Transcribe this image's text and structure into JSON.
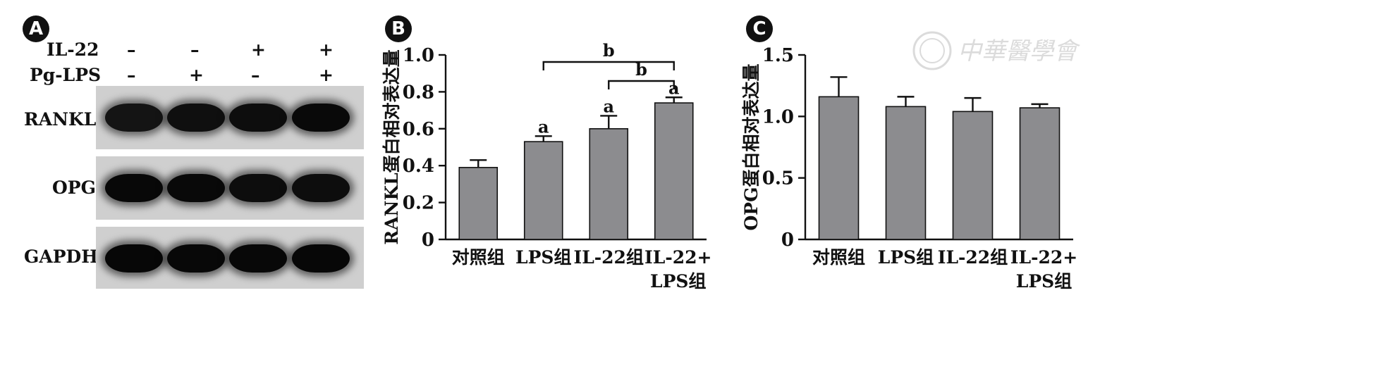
{
  "panels": {
    "a": {
      "badge": "A"
    },
    "b": {
      "badge": "B"
    },
    "c": {
      "badge": "C"
    }
  },
  "blot": {
    "treatments": [
      {
        "label": "IL-22",
        "signs": [
          "–",
          "–",
          "+",
          "+"
        ]
      },
      {
        "label": "Pg-LPS",
        "signs": [
          "–",
          "+",
          "–",
          "+"
        ]
      }
    ],
    "bands": [
      {
        "label": "RANKL",
        "intensity": [
          0.72,
          0.82,
          0.86,
          0.92
        ]
      },
      {
        "label": "OPG",
        "intensity": [
          0.95,
          0.92,
          0.85,
          0.86
        ]
      },
      {
        "label": "GAPDH",
        "intensity": [
          0.96,
          0.95,
          0.95,
          0.96
        ]
      }
    ]
  },
  "watermark_text": "中華醫學會",
  "chart_data": [
    {
      "type": "bar",
      "ylabel": "RANKL蛋白相对表达量",
      "categories": [
        "对照组",
        "LPS组",
        "IL-22组",
        "IL-22+\nLPS组"
      ],
      "values": [
        0.39,
        0.53,
        0.6,
        0.74
      ],
      "errors": [
        0.04,
        0.03,
        0.07,
        0.03
      ],
      "ylim": [
        0,
        1.0
      ],
      "yticks": [
        "0",
        "0.2",
        "0.4",
        "0.6",
        "0.8",
        "1.0"
      ],
      "ytick_values": [
        0,
        0.2,
        0.4,
        0.6,
        0.8,
        1.0
      ],
      "bar_annotations": [
        "",
        "a",
        "a",
        "a"
      ],
      "brackets": [
        {
          "from": 1,
          "to": 3,
          "label": "b"
        },
        {
          "from": 2,
          "to": 3,
          "label": "b"
        }
      ],
      "bar_color": "#8c8c8f"
    },
    {
      "type": "bar",
      "ylabel": "OPG蛋白相对表达量",
      "categories": [
        "对照组",
        "LPS组",
        "IL-22组",
        "IL-22+\nLPS组"
      ],
      "values": [
        1.16,
        1.08,
        1.04,
        1.07
      ],
      "errors": [
        0.16,
        0.08,
        0.11,
        0.03
      ],
      "ylim": [
        0,
        1.5
      ],
      "yticks": [
        "0",
        "0.5",
        "1.0",
        "1.5"
      ],
      "ytick_values": [
        0,
        0.5,
        1.0,
        1.5
      ],
      "bar_annotations": [
        "",
        "",
        "",
        ""
      ],
      "brackets": [],
      "bar_color": "#8c8c8f"
    }
  ]
}
